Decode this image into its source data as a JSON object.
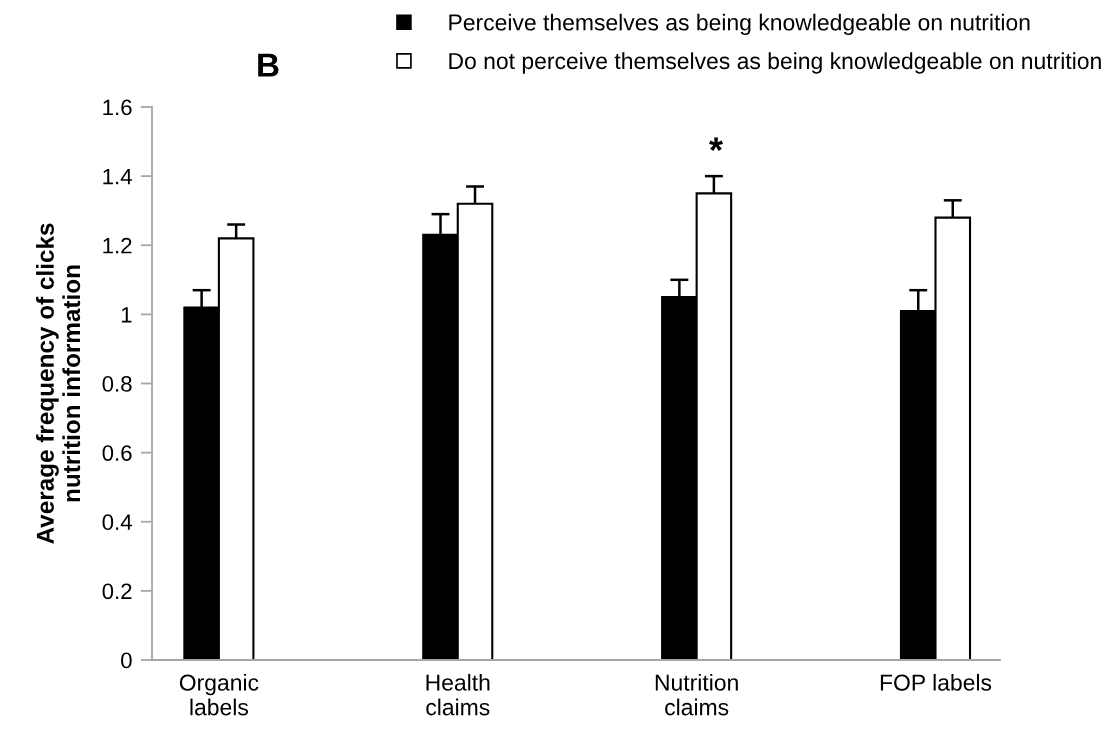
{
  "chart_data": {
    "type": "bar",
    "title": "B",
    "ylabel": "Average frequency of clicks\nnutrition information",
    "categories": [
      "Organic\nlabels",
      "Health\nclaims",
      "Nutrition\nclaims",
      "FOP labels"
    ],
    "series": [
      {
        "name": "Perceive themselves as being knowledgeable on nutrition",
        "color": "#000000",
        "values": [
          1.02,
          1.23,
          1.05,
          1.01
        ],
        "errors": [
          [
            1.02,
            1.07
          ],
          [
            1.23,
            1.29
          ],
          [
            1.05,
            1.1
          ],
          [
            1.01,
            1.07
          ]
        ]
      },
      {
        "name": "Do not perceive themselves as being knowledgeable on nutrition",
        "color": "#ffffff",
        "values": [
          1.22,
          1.32,
          1.35,
          1.28
        ],
        "errors": [
          [
            1.22,
            1.26
          ],
          [
            1.32,
            1.37
          ],
          [
            1.35,
            1.4
          ],
          [
            1.28,
            1.33
          ]
        ]
      }
    ],
    "ylim": [
      0,
      1.6
    ],
    "yticks": [
      0,
      0.2,
      0.4,
      0.6,
      0.8,
      1,
      1.2,
      1.4,
      1.6
    ],
    "legend": "top right",
    "annotations": [
      "*"
    ]
  }
}
